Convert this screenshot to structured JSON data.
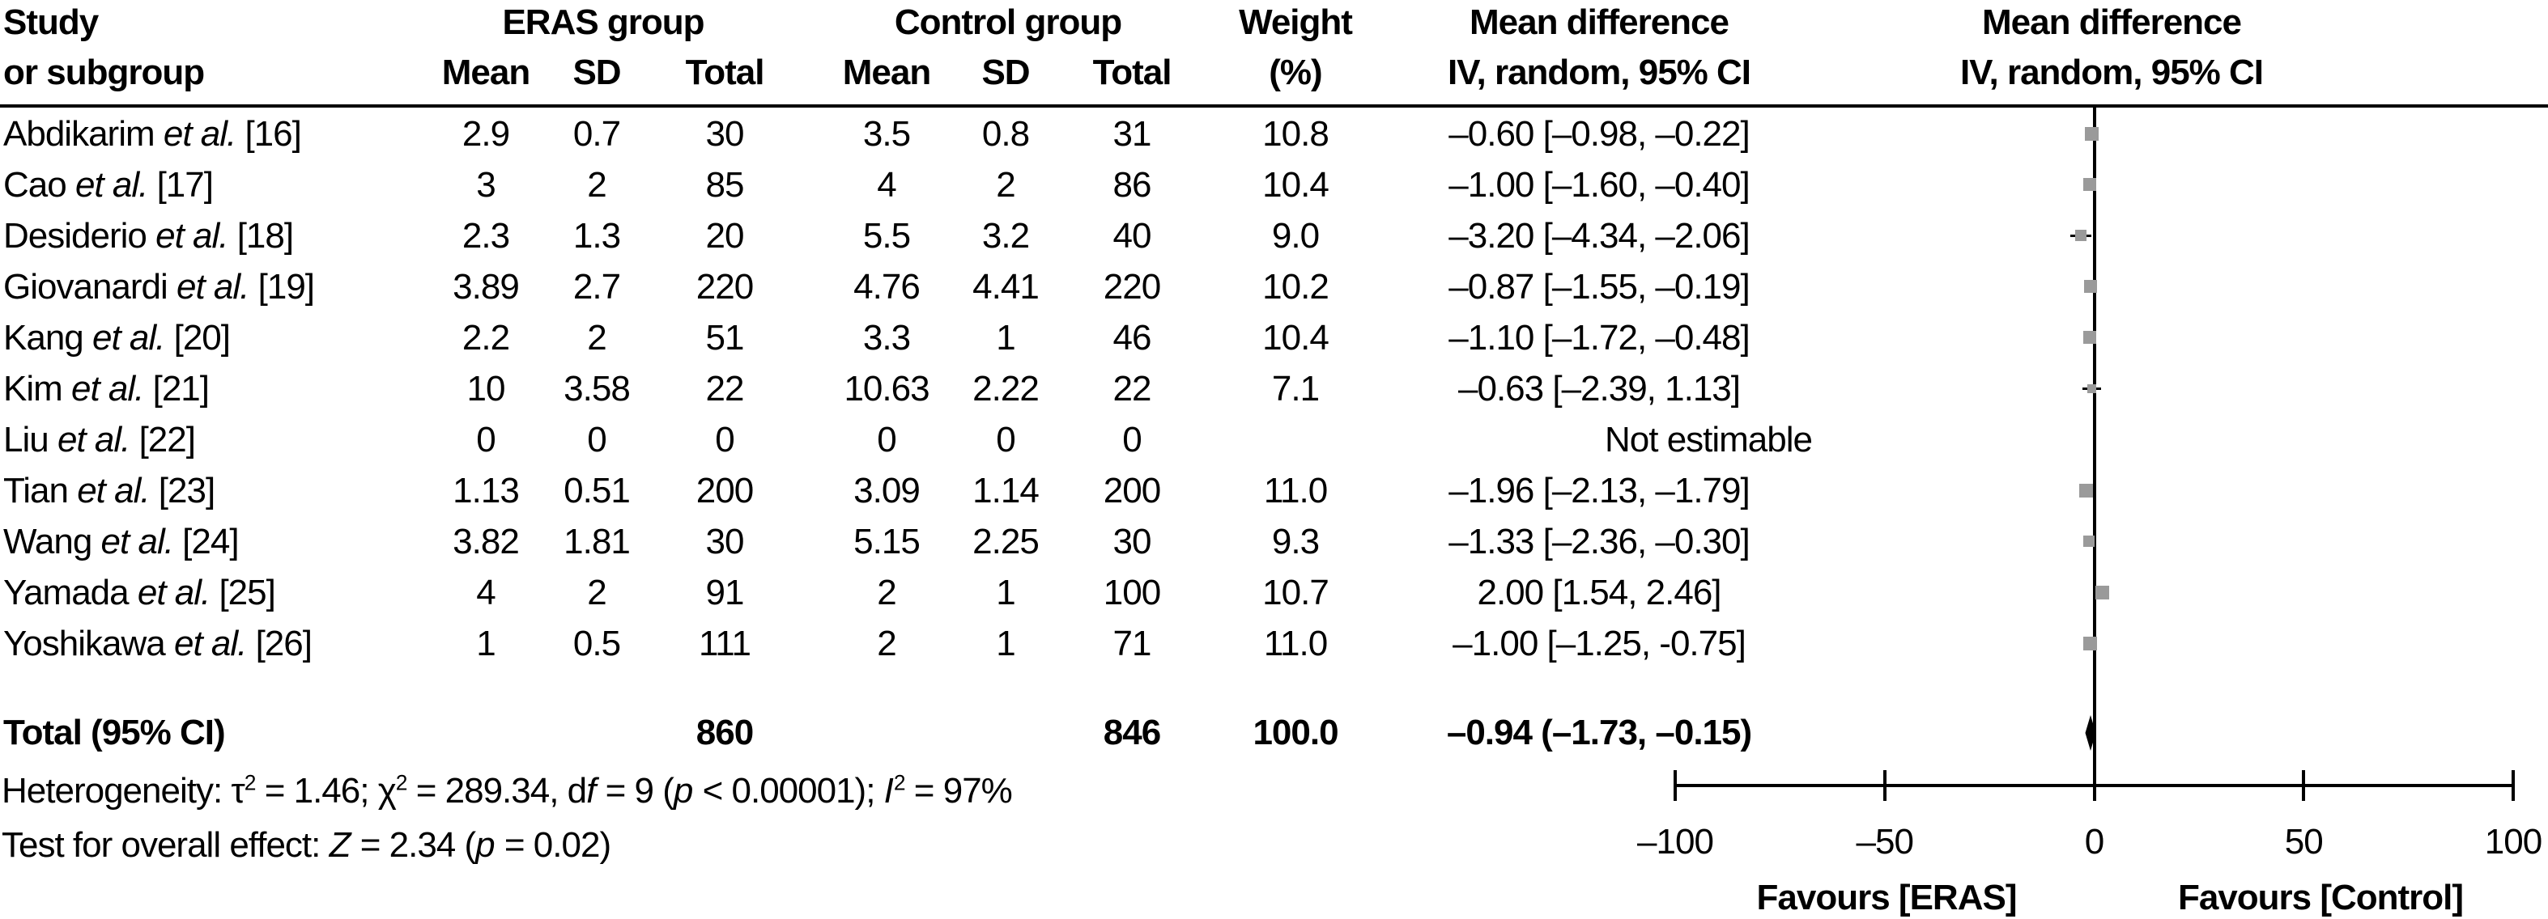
{
  "header": {
    "col1_line1": "Study",
    "col1_line2": "or subgroup",
    "eras_group": "ERAS group",
    "control_group": "Control group",
    "mean1": "Mean",
    "sd1": "SD",
    "total1": "Total",
    "mean2": "Mean",
    "sd2": "SD",
    "total2": "Total",
    "weight_line1": "Weight",
    "weight_line2": "(%)",
    "md_col_line1": "Mean difference",
    "md_col_line2": "IV, random, 95% CI",
    "md_plot_line1": "Mean difference",
    "md_plot_line2": "IV, random, 95% CI"
  },
  "rows": [
    {
      "study": "Abdikarim",
      "etal": "et al.",
      "ref": "[16]",
      "eras_mean": "2.9",
      "eras_sd": "0.7",
      "eras_total": "30",
      "ctrl_mean": "3.5",
      "ctrl_sd": "0.8",
      "ctrl_total": "31",
      "weight": "10.8",
      "md_text": "–0.60 [–0.98, –0.22]",
      "md": -0.6,
      "ci_low": -0.98,
      "ci_high": -0.22,
      "weight_val": 10.8
    },
    {
      "study": "Cao",
      "etal": "et al.",
      "ref": "[17]",
      "eras_mean": "3",
      "eras_sd": "2",
      "eras_total": "85",
      "ctrl_mean": "4",
      "ctrl_sd": "2",
      "ctrl_total": "86",
      "weight": "10.4",
      "md_text": "–1.00 [–1.60, –0.40]",
      "md": -1.0,
      "ci_low": -1.6,
      "ci_high": -0.4,
      "weight_val": 10.4
    },
    {
      "study": "Desiderio",
      "etal": "et al.",
      "ref": "[18]",
      "eras_mean": "2.3",
      "eras_sd": "1.3",
      "eras_total": "20",
      "ctrl_mean": "5.5",
      "ctrl_sd": "3.2",
      "ctrl_total": "40",
      "weight": "9.0",
      "md_text": "–3.20 [–4.34, –2.06]",
      "md": -3.2,
      "ci_low": -4.34,
      "ci_high": -2.06,
      "weight_val": 9.0
    },
    {
      "study": "Giovanardi",
      "etal": "et al.",
      "ref": "[19]",
      "eras_mean": "3.89",
      "eras_sd": "2.7",
      "eras_total": "220",
      "ctrl_mean": "4.76",
      "ctrl_sd": "4.41",
      "ctrl_total": "220",
      "weight": "10.2",
      "md_text": "–0.87 [–1.55, –0.19]",
      "md": -0.87,
      "ci_low": -1.55,
      "ci_high": -0.19,
      "weight_val": 10.2
    },
    {
      "study": "Kang",
      "etal": "et al.",
      "ref": "[20]",
      "eras_mean": "2.2",
      "eras_sd": "2",
      "eras_total": "51",
      "ctrl_mean": "3.3",
      "ctrl_sd": "1",
      "ctrl_total": "46",
      "weight": "10.4",
      "md_text": "–1.10 [–1.72, –0.48]",
      "md": -1.1,
      "ci_low": -1.72,
      "ci_high": -0.48,
      "weight_val": 10.4
    },
    {
      "study": "Kim",
      "etal": "et al.",
      "ref": "[21]",
      "eras_mean": "10",
      "eras_sd": "3.58",
      "eras_total": "22",
      "ctrl_mean": "10.63",
      "ctrl_sd": "2.22",
      "ctrl_total": "22",
      "weight": "7.1",
      "md_text": "–0.63 [–2.39, 1.13]",
      "md": -0.63,
      "ci_low": -2.39,
      "ci_high": 1.13,
      "weight_val": 7.1
    },
    {
      "study": "Liu",
      "etal": "et al.",
      "ref": "[22]",
      "eras_mean": "0",
      "eras_sd": "0",
      "eras_total": "0",
      "ctrl_mean": "0",
      "ctrl_sd": "0",
      "ctrl_total": "0",
      "weight": "",
      "md_text": "Not estimable",
      "md": null,
      "ci_low": null,
      "ci_high": null,
      "weight_val": null
    },
    {
      "study": "Tian",
      "etal": "et al.",
      "ref": "[23]",
      "eras_mean": "1.13",
      "eras_sd": "0.51",
      "eras_total": "200",
      "ctrl_mean": "3.09",
      "ctrl_sd": "1.14",
      "ctrl_total": "200",
      "weight": "11.0",
      "md_text": "–1.96 [–2.13, –1.79]",
      "md": -1.96,
      "ci_low": -2.13,
      "ci_high": -1.79,
      "weight_val": 11.0
    },
    {
      "study": "Wang",
      "etal": "et al.",
      "ref": "[24]",
      "eras_mean": "3.82",
      "eras_sd": "1.81",
      "eras_total": "30",
      "ctrl_mean": "5.15",
      "ctrl_sd": "2.25",
      "ctrl_total": "30",
      "weight": "9.3",
      "md_text": "–1.33 [–2.36, –0.30]",
      "md": -1.33,
      "ci_low": -2.36,
      "ci_high": -0.3,
      "weight_val": 9.3
    },
    {
      "study": "Yamada",
      "etal": "et al.",
      "ref": "[25]",
      "eras_mean": "4",
      "eras_sd": "2",
      "eras_total": "91",
      "ctrl_mean": "2",
      "ctrl_sd": "1",
      "ctrl_total": "100",
      "weight": "10.7",
      "md_text": "2.00 [1.54, 2.46]",
      "md": 2.0,
      "ci_low": 1.54,
      "ci_high": 2.46,
      "weight_val": 10.7
    },
    {
      "study": "Yoshikawa",
      "etal": "et al.",
      "ref": "[26]",
      "eras_mean": "1",
      "eras_sd": "0.5",
      "eras_total": "111",
      "ctrl_mean": "2",
      "ctrl_sd": "1",
      "ctrl_total": "71",
      "weight": "11.0",
      "md_text": "–1.00 [–1.25, -0.75]",
      "md": -1.0,
      "ci_low": -1.25,
      "ci_high": -0.75,
      "weight_val": 11.0
    }
  ],
  "total_row": {
    "label": "Total (95% CI)",
    "eras_total": "860",
    "ctrl_total": "846",
    "weight": "100.0",
    "md_text": "–0.94 (–1.73, –0.15)",
    "md": -0.94,
    "ci_low": -1.73,
    "ci_high": -0.15
  },
  "footnotes": {
    "heterogeneity_segments": [
      {
        "t": "Heterogeneity: τ"
      },
      {
        "t": "2",
        "sup": true
      },
      {
        "t": " = 1.46; χ"
      },
      {
        "t": "2",
        "sup": true
      },
      {
        "t": " = 289.34, d"
      },
      {
        "t": "f",
        "i": true
      },
      {
        "t": " = 9 ("
      },
      {
        "t": "p",
        "i": true
      },
      {
        "t": " < 0.00001); "
      },
      {
        "t": "I",
        "i": true
      },
      {
        "t": "2",
        "sup": true
      },
      {
        "t": " = 97%"
      }
    ],
    "overall_effect_segments": [
      {
        "t": "Test for overall effect: "
      },
      {
        "t": "Z",
        "i": true
      },
      {
        "t": " = 2.34 ("
      },
      {
        "t": "p",
        "i": true
      },
      {
        "t": " = 0.02)"
      }
    ]
  },
  "axis": {
    "tick_labels": [
      "–100",
      "–50",
      "0",
      "50",
      "100"
    ],
    "tick_values": [
      -100,
      -50,
      0,
      50,
      100
    ],
    "min": -100,
    "max": 100,
    "favours_left": "Favours [ERAS]",
    "favours_right": "Favours [Control]"
  },
  "colors": {
    "square": "#9a9a9a",
    "diamond": "#000000",
    "line": "#000000",
    "text": "#000000",
    "background": "#ffffff"
  },
  "chart_data": {
    "type": "scatter",
    "subtype": "forest_plot_mean_difference_meta_analysis",
    "title": "Mean difference IV, random, 95% CI",
    "effect_model": "IV, random, 95% CI",
    "xlim": [
      -100,
      100
    ],
    "x_ticks": [
      -100,
      -50,
      0,
      50,
      100
    ],
    "grid": false,
    "legend": false,
    "xlabel_left_of_zero": "Favours [ERAS]",
    "xlabel_right_of_zero": "Favours [Control]",
    "studies": [
      {
        "label": "Abdikarim et al. [16]",
        "eras": {
          "mean": 2.9,
          "sd": 0.7,
          "total": 30
        },
        "control": {
          "mean": 3.5,
          "sd": 0.8,
          "total": 31
        },
        "weight_pct": 10.8,
        "md": -0.6,
        "ci95": [
          -0.98,
          -0.22
        ]
      },
      {
        "label": "Cao et al. [17]",
        "eras": {
          "mean": 3,
          "sd": 2,
          "total": 85
        },
        "control": {
          "mean": 4,
          "sd": 2,
          "total": 86
        },
        "weight_pct": 10.4,
        "md": -1.0,
        "ci95": [
          -1.6,
          -0.4
        ]
      },
      {
        "label": "Desiderio et al. [18]",
        "eras": {
          "mean": 2.3,
          "sd": 1.3,
          "total": 20
        },
        "control": {
          "mean": 5.5,
          "sd": 3.2,
          "total": 40
        },
        "weight_pct": 9.0,
        "md": -3.2,
        "ci95": [
          -4.34,
          -2.06
        ]
      },
      {
        "label": "Giovanardi et al. [19]",
        "eras": {
          "mean": 3.89,
          "sd": 2.7,
          "total": 220
        },
        "control": {
          "mean": 4.76,
          "sd": 4.41,
          "total": 220
        },
        "weight_pct": 10.2,
        "md": -0.87,
        "ci95": [
          -1.55,
          -0.19
        ]
      },
      {
        "label": "Kang et al. [20]",
        "eras": {
          "mean": 2.2,
          "sd": 2,
          "total": 51
        },
        "control": {
          "mean": 3.3,
          "sd": 1,
          "total": 46
        },
        "weight_pct": 10.4,
        "md": -1.1,
        "ci95": [
          -1.72,
          -0.48
        ]
      },
      {
        "label": "Kim et al. [21]",
        "eras": {
          "mean": 10,
          "sd": 3.58,
          "total": 22
        },
        "control": {
          "mean": 10.63,
          "sd": 2.22,
          "total": 22
        },
        "weight_pct": 7.1,
        "md": -0.63,
        "ci95": [
          -2.39,
          1.13
        ]
      },
      {
        "label": "Liu et al. [22]",
        "eras": {
          "mean": 0,
          "sd": 0,
          "total": 0
        },
        "control": {
          "mean": 0,
          "sd": 0,
          "total": 0
        },
        "weight_pct": null,
        "md": null,
        "ci95": null,
        "note": "Not estimable"
      },
      {
        "label": "Tian et al. [23]",
        "eras": {
          "mean": 1.13,
          "sd": 0.51,
          "total": 200
        },
        "control": {
          "mean": 3.09,
          "sd": 1.14,
          "total": 200
        },
        "weight_pct": 11.0,
        "md": -1.96,
        "ci95": [
          -2.13,
          -1.79
        ]
      },
      {
        "label": "Wang et al. [24]",
        "eras": {
          "mean": 3.82,
          "sd": 1.81,
          "total": 30
        },
        "control": {
          "mean": 5.15,
          "sd": 2.25,
          "total": 30
        },
        "weight_pct": 9.3,
        "md": -1.33,
        "ci95": [
          -2.36,
          -0.3
        ]
      },
      {
        "label": "Yamada et al. [25]",
        "eras": {
          "mean": 4,
          "sd": 2,
          "total": 91
        },
        "control": {
          "mean": 2,
          "sd": 1,
          "total": 100
        },
        "weight_pct": 10.7,
        "md": 2.0,
        "ci95": [
          1.54,
          2.46
        ]
      },
      {
        "label": "Yoshikawa et al. [26]",
        "eras": {
          "mean": 1,
          "sd": 0.5,
          "total": 111
        },
        "control": {
          "mean": 2,
          "sd": 1,
          "total": 71
        },
        "weight_pct": 11.0,
        "md": -1.0,
        "ci95": [
          -1.25,
          -0.75
        ]
      }
    ],
    "total": {
      "label": "Total (95% CI)",
      "eras_total": 860,
      "control_total": 846,
      "weight_pct": 100.0,
      "md": -0.94,
      "ci95": [
        -1.73,
        -0.15
      ]
    },
    "heterogeneity": "tau2 = 1.46; chi2 = 289.34, df = 9 (p < 0.00001); I2 = 97%",
    "overall_effect": "Z = 2.34 (p = 0.02)"
  }
}
